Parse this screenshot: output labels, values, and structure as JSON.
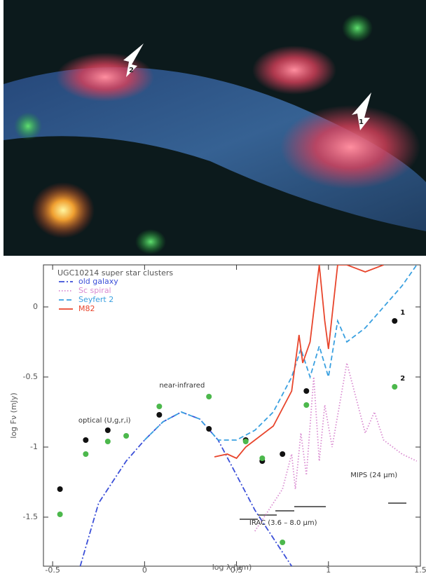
{
  "image": {
    "labels": [
      "2",
      "1"
    ]
  },
  "chart_data": {
    "type": "line",
    "title": "UGC10214 super star clusters",
    "xlabel": "log λ (µm)",
    "ylabel": "log Fν (mJy)",
    "xlim": [
      -0.55,
      1.5
    ],
    "ylim": [
      -1.85,
      0.3
    ],
    "xticks": [
      -0.5,
      0,
      0.5,
      1,
      1.5
    ],
    "yticks": [
      0,
      -0.5,
      -1,
      -1.5
    ],
    "grid": false,
    "legend": "top-left",
    "annotations": [
      {
        "text": "optical (U,g,r,i)",
        "x": -0.36,
        "y": -0.81
      },
      {
        "text": "near-infrared",
        "x": 0.08,
        "y": -0.56
      },
      {
        "text": "MIPS (24 µm)",
        "x": 1.12,
        "y": -1.2
      },
      {
        "text": "IRAC (3.6 – 8.0 µm)",
        "x": 0.57,
        "y": -1.54
      }
    ],
    "series": [
      {
        "name": "old galaxy",
        "color": "#3b4fd8",
        "style": "dashdot",
        "x": [
          -0.35,
          -0.25,
          -0.1,
          0,
          0.1,
          0.2,
          0.3,
          0.4,
          0.5,
          0.6,
          0.7,
          0.8
        ],
        "values": [
          -1.85,
          -1.4,
          -1.1,
          -0.95,
          -0.82,
          -0.75,
          -0.8,
          -0.95,
          -1.2,
          -1.45,
          -1.65,
          -1.85
        ]
      },
      {
        "name": "Sc spiral",
        "color": "#d98ad0",
        "style": "dotted",
        "x": [
          0.6,
          0.7,
          0.75,
          0.8,
          0.82,
          0.85,
          0.88,
          0.92,
          0.95,
          0.98,
          1.02,
          1.1,
          1.2,
          1.25,
          1.3,
          1.35,
          1.4,
          1.48
        ],
        "values": [
          -1.6,
          -1.4,
          -1.3,
          -1.05,
          -1.3,
          -0.9,
          -1.2,
          -0.5,
          -1.1,
          -0.7,
          -1.0,
          -0.4,
          -0.9,
          -0.75,
          -0.95,
          -1.0,
          -1.05,
          -1.1
        ]
      },
      {
        "name": "Seyfert 2",
        "color": "#3aa0e0",
        "style": "dashed",
        "x": [
          0,
          0.1,
          0.2,
          0.3,
          0.4,
          0.5,
          0.6,
          0.7,
          0.8,
          0.85,
          0.9,
          0.95,
          1.0,
          1.05,
          1.1,
          1.2,
          1.3,
          1.4,
          1.48
        ],
        "values": [
          -0.95,
          -0.82,
          -0.75,
          -0.8,
          -0.95,
          -0.95,
          -0.88,
          -0.75,
          -0.5,
          -0.3,
          -0.5,
          -0.28,
          -0.5,
          -0.1,
          -0.25,
          -0.15,
          0,
          0.15,
          0.3
        ]
      },
      {
        "name": "M82",
        "color": "#e8452c",
        "style": "solid",
        "x": [
          0.38,
          0.45,
          0.5,
          0.55,
          0.6,
          0.7,
          0.8,
          0.84,
          0.86,
          0.9,
          0.95,
          0.98,
          1.0,
          1.05,
          1.1,
          1.2,
          1.3
        ],
        "values": [
          -1.07,
          -1.05,
          -1.08,
          -1.0,
          -0.95,
          -0.85,
          -0.6,
          -0.2,
          -0.4,
          -0.25,
          0.3,
          -0.1,
          -0.3,
          0.3,
          0.3,
          0.25,
          0.3
        ]
      },
      {
        "name": "1",
        "color": "#111111",
        "style": "points",
        "x": [
          -0.46,
          -0.32,
          -0.2,
          0.08,
          0.35,
          0.55,
          0.64,
          0.75,
          0.88,
          1.36
        ],
        "values": [
          -1.3,
          -0.95,
          -0.88,
          -0.77,
          -0.87,
          -0.95,
          -1.1,
          -1.05,
          -0.6,
          -0.1
        ]
      },
      {
        "name": "2",
        "color": "#4cb84c",
        "style": "points",
        "x": [
          -0.46,
          -0.32,
          -0.2,
          -0.1,
          0.08,
          0.35,
          0.55,
          0.64,
          0.75,
          0.88,
          1.36
        ],
        "values": [
          -1.48,
          -1.05,
          -0.96,
          -0.92,
          -0.71,
          -0.64,
          -0.96,
          -1.08,
          -1.68,
          -0.7,
          -0.57
        ]
      }
    ]
  }
}
